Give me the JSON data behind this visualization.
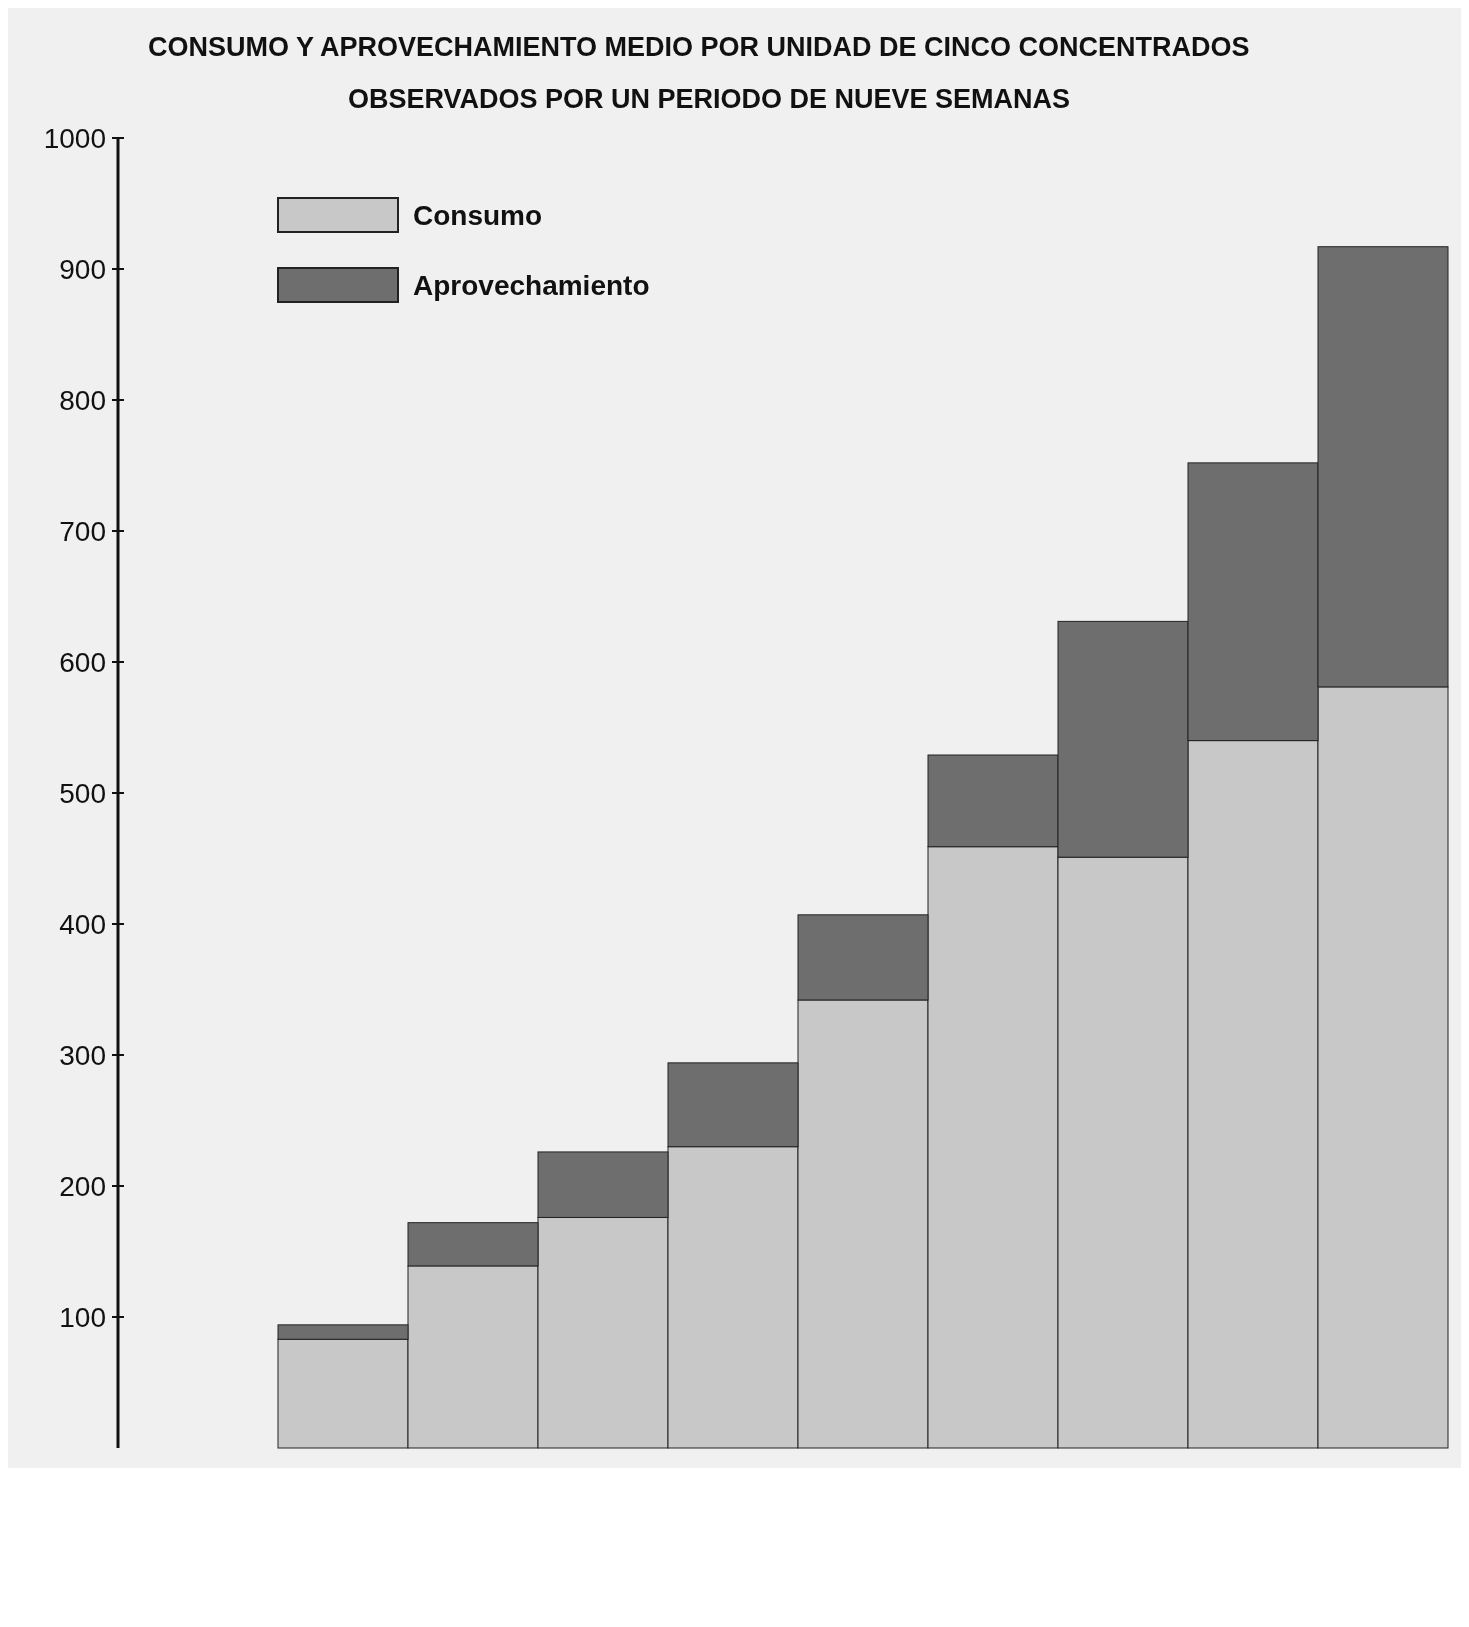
{
  "chart_data": {
    "type": "bar",
    "stacked": true,
    "title": "CONSUMO Y APROVECHAMIENTO MEDIO POR UNIDAD DE CINCO CONCENTRADOS",
    "subtitle": "OBSERVADOS POR UN PERIODO DE NUEVE SEMANAS",
    "categories": [
      null,
      null,
      null,
      null,
      null,
      null,
      null,
      null,
      null
    ],
    "series": [
      {
        "name": "Consumo",
        "color": "#c8c8c8",
        "values": [
          83,
          139,
          176,
          230,
          342,
          459,
          451,
          540,
          581
        ]
      },
      {
        "name": "Aprovechamiento",
        "color": "#6e6e6e",
        "values": [
          11,
          33,
          50,
          64,
          65,
          70,
          180,
          212,
          336
        ]
      }
    ],
    "ylim": [
      0,
      1000
    ],
    "yticks": [
      100,
      200,
      300,
      400,
      500,
      600,
      700,
      800,
      900,
      1000
    ],
    "legend": "top left",
    "grid": false
  }
}
